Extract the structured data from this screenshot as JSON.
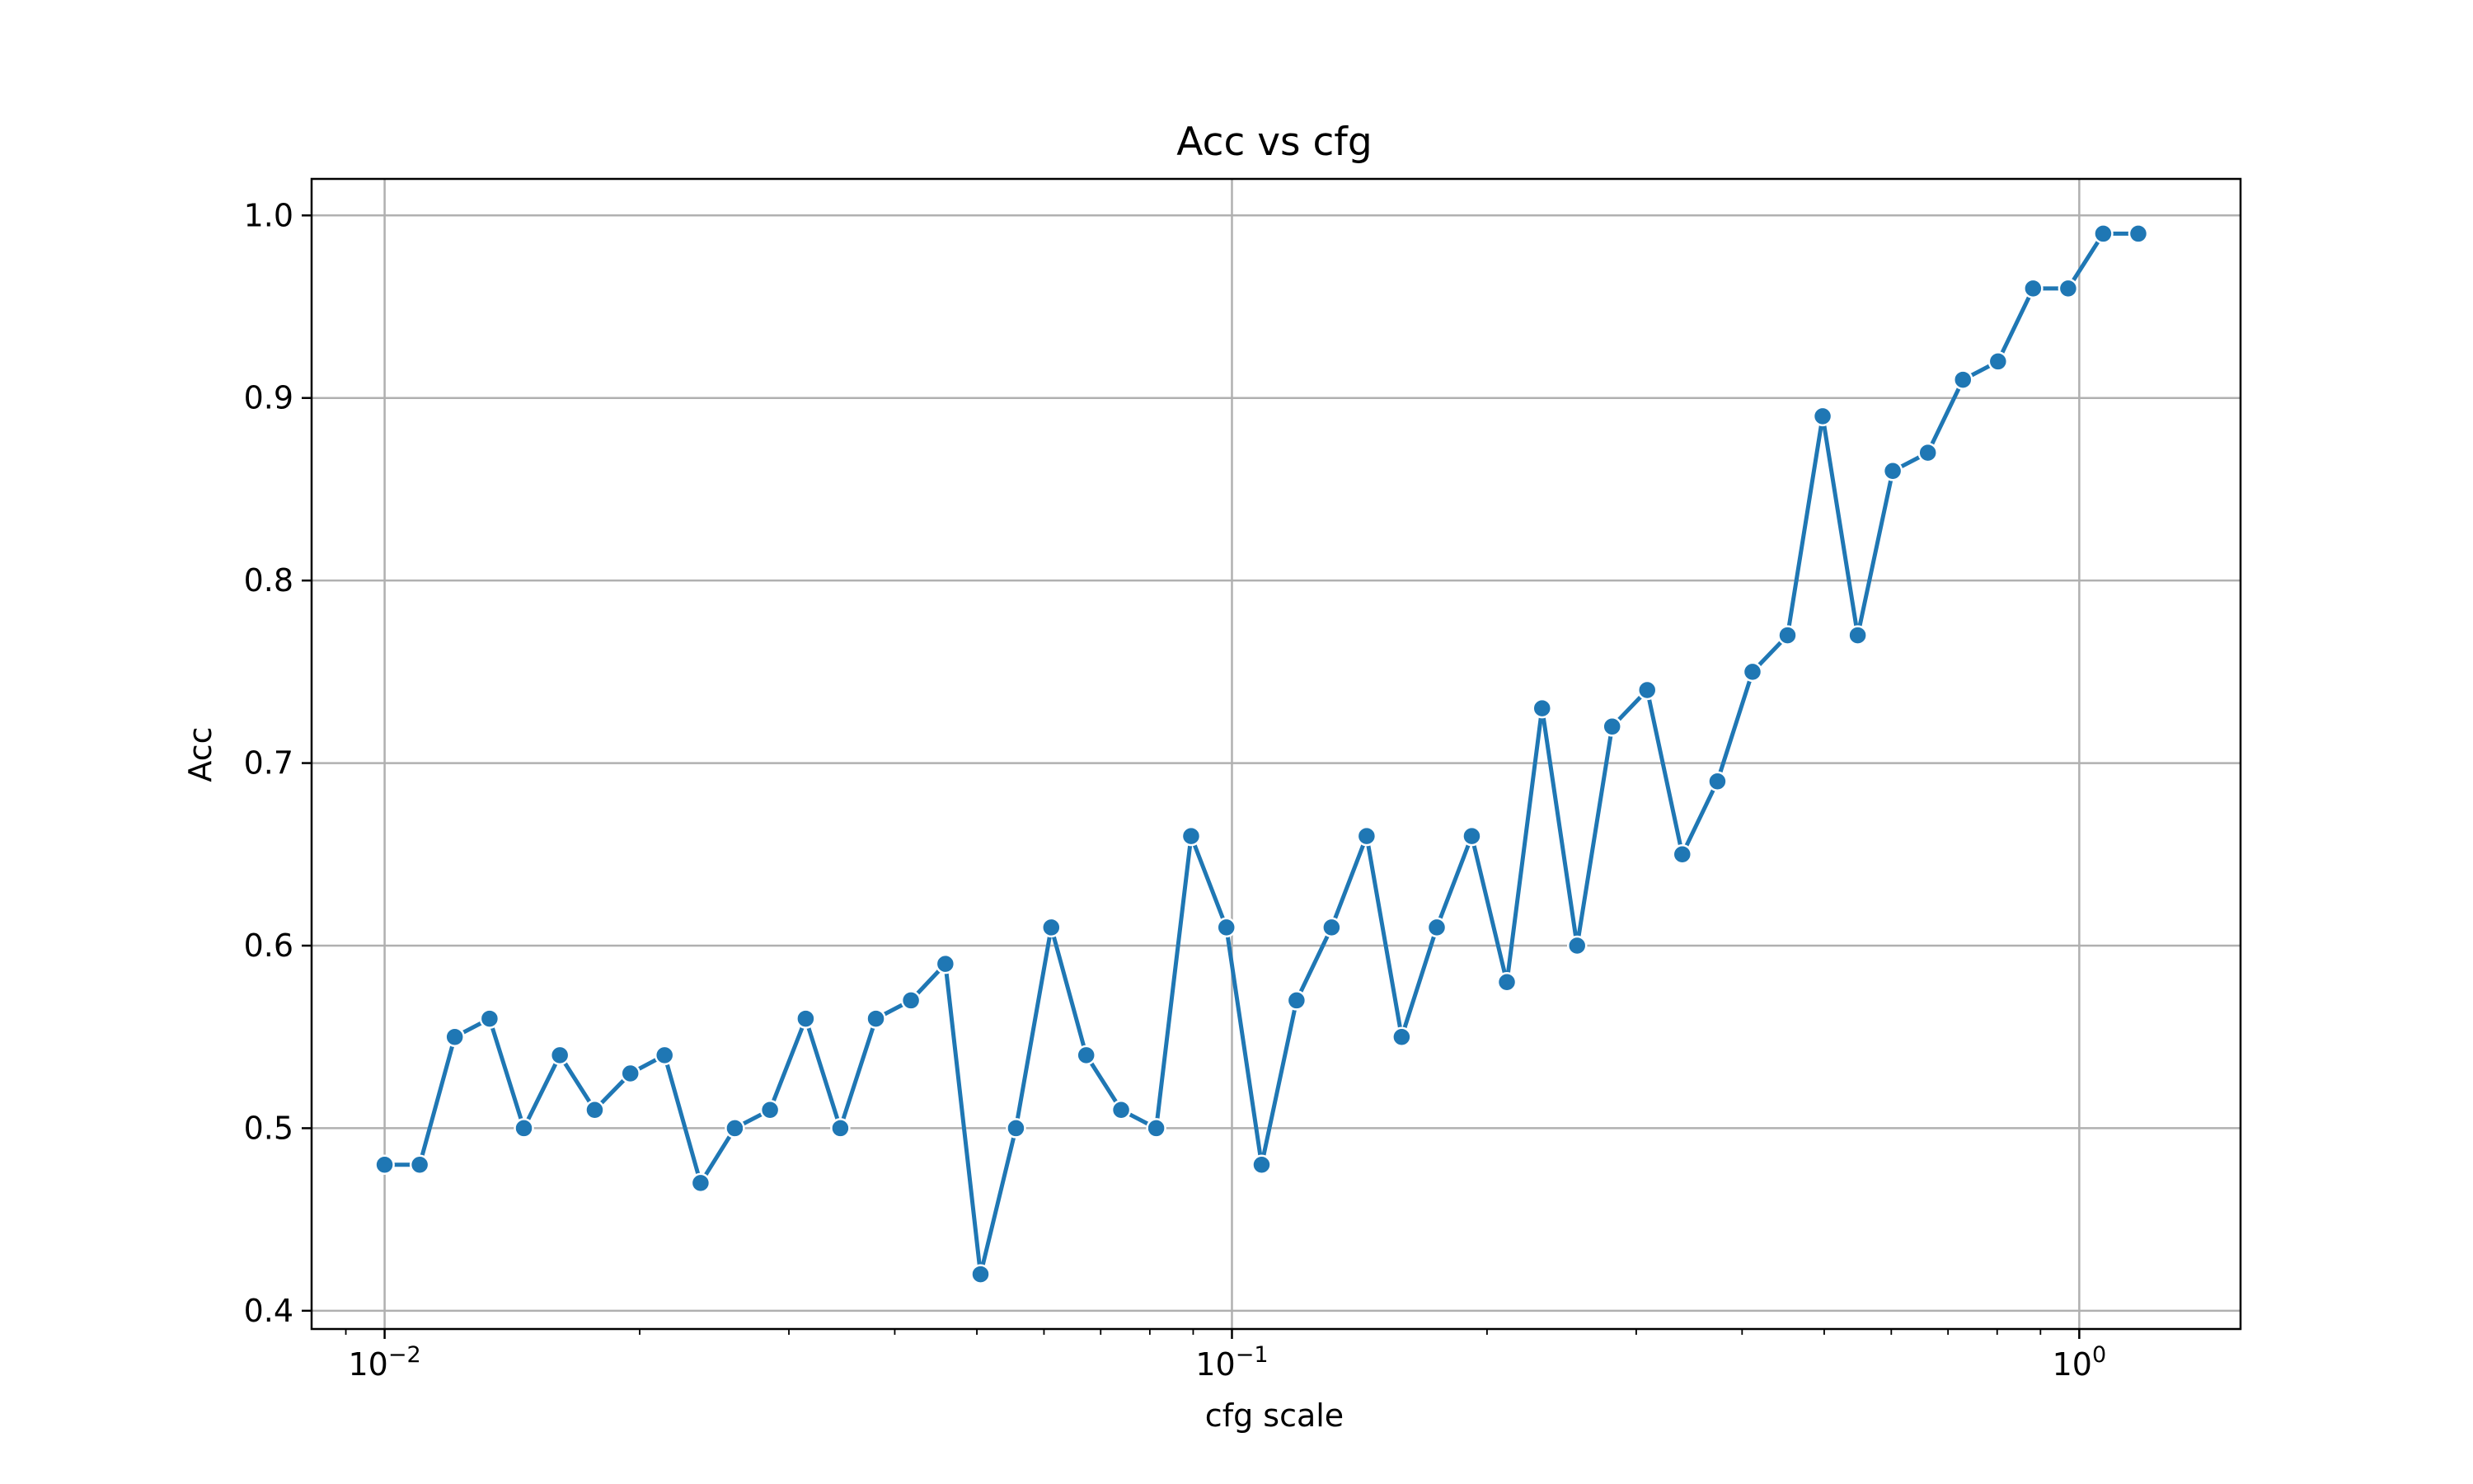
{
  "chart_data": {
    "type": "line",
    "title": "Acc vs cfg",
    "xlabel": "cfg scale",
    "ylabel": "Acc",
    "xscale": "log",
    "grid": true,
    "xlim": [
      0.0082,
      1.55
    ],
    "ylim": [
      0.39,
      1.02
    ],
    "x_ticks": [
      {
        "value": 0.01,
        "base": "10",
        "exp": "−2"
      },
      {
        "value": 0.1,
        "base": "10",
        "exp": "−1"
      },
      {
        "value": 1,
        "base": "10",
        "exp": "0"
      }
    ],
    "y_ticks": [
      {
        "value": 0.4,
        "label": "0.4"
      },
      {
        "value": 0.5,
        "label": "0.5"
      },
      {
        "value": 0.6,
        "label": "0.6"
      },
      {
        "value": 0.7,
        "label": "0.7"
      },
      {
        "value": 0.8,
        "label": "0.8"
      },
      {
        "value": 0.9,
        "label": "0.9"
      },
      {
        "value": 1.0,
        "label": "1.0"
      }
    ],
    "series": [
      {
        "color": "#1f77b4",
        "x": [
          0.01,
          0.011,
          0.0121,
          0.0133,
          0.0146,
          0.0161,
          0.0177,
          0.0195,
          0.0214,
          0.0236,
          0.0259,
          0.0285,
          0.0314,
          0.0345,
          0.038,
          0.0418,
          0.0459,
          0.0505,
          0.0556,
          0.0612,
          0.0673,
          0.074,
          0.0814,
          0.0895,
          0.0985,
          0.1084,
          0.1192,
          0.1311,
          0.1442,
          0.1586,
          0.1745,
          0.1919,
          0.2111,
          0.2323,
          0.2555,
          0.281,
          0.3091,
          0.34,
          0.3741,
          0.4115,
          0.4526,
          0.4979,
          0.5477,
          0.6024,
          0.6627,
          0.729,
          0.8019,
          0.8821,
          0.9703,
          1.0673,
          1.174
        ],
        "y": [
          0.48,
          0.48,
          0.55,
          0.56,
          0.5,
          0.54,
          0.51,
          0.53,
          0.54,
          0.47,
          0.5,
          0.51,
          0.56,
          0.5,
          0.56,
          0.57,
          0.59,
          0.42,
          0.5,
          0.61,
          0.54,
          0.51,
          0.5,
          0.66,
          0.61,
          0.48,
          0.57,
          0.61,
          0.66,
          0.55,
          0.61,
          0.66,
          0.58,
          0.73,
          0.6,
          0.72,
          0.74,
          0.65,
          0.69,
          0.75,
          0.77,
          0.89,
          0.77,
          0.86,
          0.87,
          0.91,
          0.92,
          0.96,
          0.96,
          0.99,
          0.99
        ]
      }
    ]
  }
}
